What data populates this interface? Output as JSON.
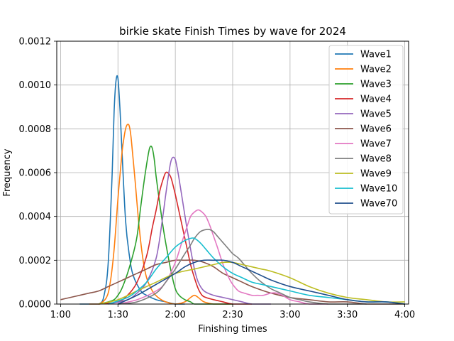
{
  "chart_data": {
    "type": "line",
    "title": "birkie skate Finish Times by wave for 2024",
    "xlabel": "Finishing times",
    "ylabel": "Frequency",
    "x_unit": "minutes",
    "xlim": [
      58,
      242
    ],
    "ylim": [
      0,
      0.0012
    ],
    "x_ticks": [
      {
        "value": 60,
        "label": "1:00"
      },
      {
        "value": 90,
        "label": "1:30"
      },
      {
        "value": 120,
        "label": "2:00"
      },
      {
        "value": 150,
        "label": "2:30"
      },
      {
        "value": 180,
        "label": "3:00"
      },
      {
        "value": 210,
        "label": "3:30"
      },
      {
        "value": 240,
        "label": "4:00"
      }
    ],
    "y_ticks": [
      {
        "value": 0,
        "label": "0.0000"
      },
      {
        "value": 0.0002,
        "label": "0.0002"
      },
      {
        "value": 0.0004,
        "label": "0.0004"
      },
      {
        "value": 0.0006,
        "label": "0.0006"
      },
      {
        "value": 0.0008,
        "label": "0.0008"
      },
      {
        "value": 0.001,
        "label": "0.0010"
      },
      {
        "value": 0.0012,
        "label": "0.0012"
      }
    ],
    "grid": true,
    "legend_position": "top-right",
    "series": [
      {
        "name": "Wave1",
        "color": "#1f77b4",
        "x": [
          70,
          80,
          83,
          85,
          87,
          88,
          89,
          90,
          91,
          92,
          94,
          96,
          98,
          102,
          105,
          110,
          115,
          120,
          125
        ],
        "y": [
          0,
          0,
          5e-05,
          0.0002,
          0.0006,
          0.00088,
          0.00102,
          0.00103,
          0.0009,
          0.00072,
          0.00038,
          0.00022,
          0.00013,
          6e-05,
          4e-05,
          2e-05,
          1e-05,
          0,
          0
        ]
      },
      {
        "name": "Wave2",
        "color": "#ff7f0e",
        "x": [
          75,
          80,
          84,
          86,
          88,
          90,
          92,
          93,
          94,
          95,
          96,
          97,
          99,
          101,
          103,
          105,
          108,
          111,
          115,
          120,
          125,
          128,
          130,
          132,
          135,
          140,
          145,
          150
        ],
        "y": [
          0,
          0,
          3e-05,
          0.0001,
          0.00025,
          0.00048,
          0.00068,
          0.00075,
          0.0008,
          0.00082,
          0.00081,
          0.00075,
          0.00056,
          0.00036,
          0.00021,
          0.00012,
          6e-05,
          3e-05,
          1e-05,
          0,
          1e-05,
          3e-05,
          4e-05,
          3e-05,
          1e-05,
          0,
          0,
          0
        ]
      },
      {
        "name": "Wave3",
        "color": "#2ca02c",
        "x": [
          80,
          85,
          88,
          90,
          92,
          95,
          98,
          100,
          102,
          104,
          106,
          107,
          108,
          109,
          110,
          112,
          114,
          116,
          118,
          120,
          122,
          125,
          128,
          130,
          135,
          140,
          150
        ],
        "y": [
          0,
          1e-05,
          2e-05,
          4e-05,
          7e-05,
          0.00014,
          0.00023,
          0.00031,
          0.00045,
          0.00058,
          0.00069,
          0.00072,
          0.00071,
          0.00066,
          0.00058,
          0.00045,
          0.00033,
          0.00023,
          0.00014,
          7e-05,
          4e-05,
          2e-05,
          1e-05,
          0,
          0,
          0,
          0
        ]
      },
      {
        "name": "Wave4",
        "color": "#d62728",
        "x": [
          80,
          90,
          95,
          100,
          105,
          108,
          110,
          112,
          114,
          115,
          116,
          117,
          118,
          120,
          122,
          124,
          126,
          128,
          130,
          132,
          134,
          136,
          140,
          145,
          150,
          160
        ],
        "y": [
          0,
          1e-05,
          4e-05,
          0.0001,
          0.00022,
          0.00035,
          0.00043,
          0.00052,
          0.00058,
          0.0006,
          0.0006,
          0.00059,
          0.00057,
          0.0005,
          0.00042,
          0.00034,
          0.00026,
          0.00018,
          0.00012,
          7e-05,
          4e-05,
          3e-05,
          2e-05,
          1e-05,
          0,
          0
        ]
      },
      {
        "name": "Wave5",
        "color": "#9467bd",
        "x": [
          85,
          95,
          100,
          105,
          110,
          113,
          115,
          117,
          118,
          119,
          120,
          121,
          122,
          124,
          126,
          128,
          130,
          132,
          135,
          140,
          145,
          150,
          155,
          160,
          170
        ],
        "y": [
          0,
          2e-05,
          5e-05,
          0.0001,
          0.00021,
          0.00037,
          0.0005,
          0.00062,
          0.00066,
          0.00067,
          0.00066,
          0.00062,
          0.00057,
          0.00046,
          0.00035,
          0.00025,
          0.00016,
          0.0001,
          6e-05,
          4e-05,
          3e-05,
          2e-05,
          1e-05,
          0,
          0
        ]
      },
      {
        "name": "Wave6",
        "color": "#8c564b",
        "x": [
          60,
          65,
          70,
          75,
          80,
          85,
          90,
          95,
          100,
          105,
          110,
          115,
          120,
          125,
          130,
          135,
          140,
          145,
          150,
          155,
          160,
          170,
          180,
          190,
          200,
          210,
          220,
          230,
          240
        ],
        "y": [
          2e-05,
          3e-05,
          4e-05,
          5e-05,
          6e-05,
          8e-05,
          0.0001,
          0.00012,
          0.00014,
          0.00016,
          0.00018,
          0.00019,
          0.0002,
          0.0002,
          0.0002,
          0.00019,
          0.00017,
          0.00014,
          0.00012,
          0.0001,
          8e-05,
          5e-05,
          3e-05,
          2e-05,
          1e-05,
          1e-05,
          0,
          0,
          0
        ]
      },
      {
        "name": "Wave7",
        "color": "#e377c2",
        "x": [
          90,
          100,
          110,
          115,
          120,
          123,
          126,
          128,
          130,
          132,
          134,
          136,
          138,
          140,
          142,
          145,
          148,
          150,
          153,
          156,
          160,
          163,
          166,
          170,
          173,
          176,
          180,
          185,
          190,
          200
        ],
        "y": [
          0,
          2e-05,
          6e-05,
          0.0001,
          0.00019,
          0.00027,
          0.00035,
          0.0004,
          0.00042,
          0.00043,
          0.00042,
          0.0004,
          0.00036,
          0.00031,
          0.00026,
          0.00018,
          0.00012,
          9e-05,
          6e-05,
          5e-05,
          4e-05,
          4e-05,
          4e-05,
          5e-05,
          5e-05,
          4e-05,
          2e-05,
          1e-05,
          0,
          0
        ]
      },
      {
        "name": "Wave8",
        "color": "#7f7f7f",
        "x": [
          90,
          100,
          110,
          115,
          120,
          125,
          128,
          130,
          133,
          136,
          138,
          140,
          142,
          145,
          148,
          150,
          153,
          156,
          160,
          165,
          170,
          175,
          180,
          185,
          190,
          200,
          210,
          220
        ],
        "y": [
          0,
          1e-05,
          5e-05,
          0.0001,
          0.00016,
          0.00023,
          0.00027,
          0.0003,
          0.00033,
          0.00034,
          0.00034,
          0.00033,
          0.00031,
          0.00028,
          0.00025,
          0.00023,
          0.00021,
          0.00018,
          0.00014,
          0.0001,
          7e-05,
          5e-05,
          3e-05,
          2e-05,
          1e-05,
          0,
          0,
          0
        ]
      },
      {
        "name": "Wave9",
        "color": "#bcbd22",
        "x": [
          80,
          90,
          100,
          110,
          120,
          130,
          135,
          140,
          145,
          150,
          155,
          160,
          165,
          170,
          180,
          190,
          200,
          210,
          220,
          230,
          240
        ],
        "y": [
          0,
          2e-05,
          6e-05,
          0.0001,
          0.00014,
          0.00016,
          0.00017,
          0.00018,
          0.00019,
          0.00019,
          0.00018,
          0.00017,
          0.00016,
          0.00015,
          0.00012,
          8e-05,
          5e-05,
          3e-05,
          2e-05,
          1e-05,
          1e-05
        ]
      },
      {
        "name": "Wave10",
        "color": "#17becf",
        "x": [
          85,
          95,
          100,
          105,
          110,
          115,
          120,
          125,
          128,
          130,
          133,
          136,
          140,
          145,
          150,
          155,
          160,
          165,
          170,
          175,
          180,
          190,
          200,
          210,
          220,
          230,
          240
        ],
        "y": [
          0,
          3e-05,
          6e-05,
          0.0001,
          0.00016,
          0.00021,
          0.00026,
          0.00029,
          0.0003,
          0.0003,
          0.00028,
          0.00025,
          0.00021,
          0.00017,
          0.00014,
          0.00012,
          0.0001,
          9e-05,
          8e-05,
          7e-05,
          6e-05,
          4e-05,
          3e-05,
          2e-05,
          1e-05,
          1e-05,
          0
        ]
      },
      {
        "name": "Wave70",
        "color": "#1f4e8c",
        "x": [
          90,
          100,
          110,
          120,
          125,
          130,
          135,
          140,
          145,
          150,
          155,
          160,
          165,
          170,
          180,
          190,
          200,
          210,
          220,
          230,
          240
        ],
        "y": [
          0,
          4e-05,
          9e-05,
          0.00014,
          0.00017,
          0.00019,
          0.0002,
          0.0002,
          0.0002,
          0.00019,
          0.00017,
          0.00015,
          0.00013,
          0.00011,
          8e-05,
          6e-05,
          4e-05,
          2e-05,
          1e-05,
          1e-05,
          0
        ]
      }
    ]
  }
}
